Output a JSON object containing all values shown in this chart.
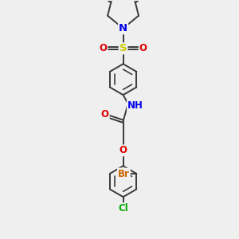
{
  "bg_color": "#efefef",
  "bond_color": "#3a3a3a",
  "bond_width": 1.4,
  "atom_colors": {
    "N": "#0000ee",
    "O": "#dd0000",
    "S": "#cccc00",
    "Br": "#cc6600",
    "Cl": "#00aa00",
    "C": "#3a3a3a"
  },
  "font_size": 8.5,
  "figsize": [
    3.0,
    3.0
  ],
  "dpi": 100,
  "xlim": [
    0,
    10
  ],
  "ylim": [
    0,
    13
  ]
}
